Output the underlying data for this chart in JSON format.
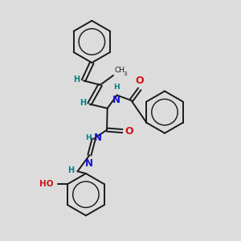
{
  "background_color": "#dcdcdc",
  "bond_color": "#1a1a1a",
  "nitrogen_color": "#1414cc",
  "oxygen_color": "#cc1414",
  "hydrogen_color": "#008080",
  "figsize": [
    3.0,
    3.0
  ],
  "dpi": 100,
  "xlim": [
    0,
    10
  ],
  "ylim": [
    0,
    10
  ]
}
